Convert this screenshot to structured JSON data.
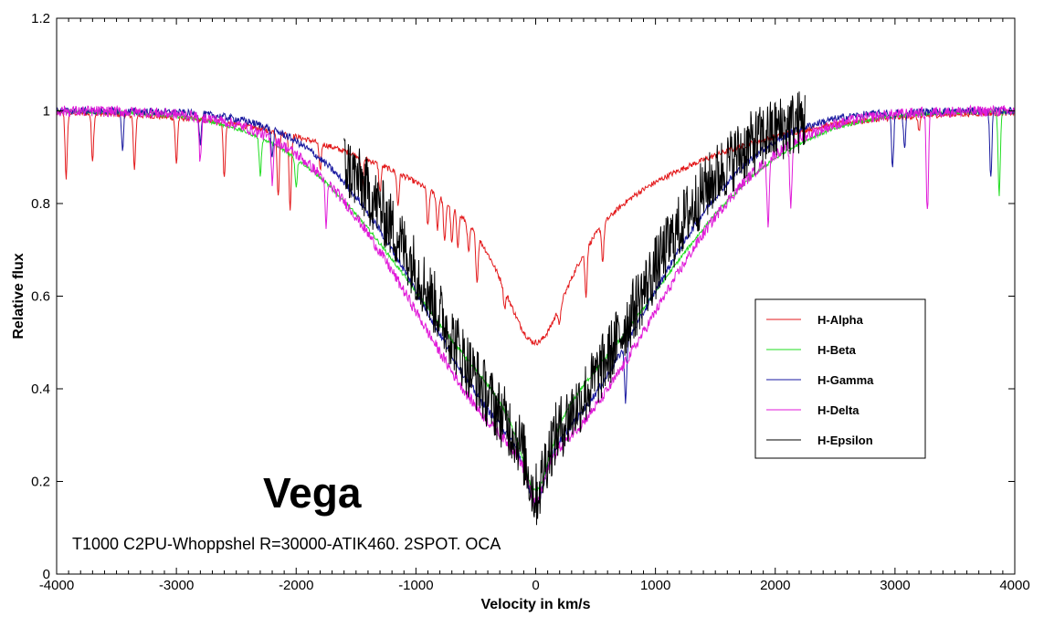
{
  "chart_data": {
    "type": "line",
    "title": "",
    "xlabel": "Velocity in km/s",
    "ylabel": "Relative flux",
    "xlim": [
      -4000,
      4000
    ],
    "ylim": [
      0,
      1.2
    ],
    "xticks": [
      -4000,
      -3000,
      -2000,
      -1000,
      0,
      1000,
      2000,
      3000,
      4000
    ],
    "yticks": [
      0,
      0.2,
      0.4,
      0.6,
      0.8,
      1,
      1.2
    ],
    "ytick_labels": [
      "0",
      "0.2",
      "0.4",
      "0.6",
      "0.8",
      "1",
      "1.2"
    ],
    "grid": false,
    "legend_position": "right",
    "annotations": [
      {
        "text": "Vega",
        "x": -2300,
        "y": 0.17
      },
      {
        "text": "T1000 C2PU-Whoppshel R=30000-ATIK460. 2SPOT. OCA",
        "x": -3900,
        "y": 0.05
      }
    ],
    "series": [
      {
        "name": "H-Alpha",
        "color": "#e31a1c",
        "x_range": [
          -4000,
          4000
        ],
        "min": 0.5,
        "halfwidth": 380,
        "wing_depth": 0.15,
        "wing_width": 1800,
        "noise": 0.006,
        "spike_x": [
          -3920,
          -3700,
          -3350,
          -3000,
          -2600,
          -2150,
          -2050,
          -1800,
          -1450,
          -1300,
          -1150,
          -900,
          -820,
          -760,
          -700,
          -650,
          -560,
          -490,
          -260,
          200,
          420,
          560,
          3200
        ],
        "spike_depth": [
          0.14,
          0.1,
          0.12,
          0.1,
          0.12,
          0.14,
          0.16,
          0.06,
          0.08,
          0.06,
          0.07,
          0.08,
          0.07,
          0.09,
          0.08,
          0.07,
          0.06,
          0.1,
          0.04,
          0.04,
          0.1,
          0.08,
          0.03
        ]
      },
      {
        "name": "H-Beta",
        "color": "#22dd22",
        "x_range": [
          -4000,
          4000
        ],
        "min": 0.18,
        "halfwidth": 170,
        "wing_depth": 0.6,
        "wing_width": 1500,
        "noise": 0.004,
        "spike_x": [
          -2300,
          -2000,
          3870
        ],
        "spike_depth": [
          0.08,
          0.06,
          0.18
        ]
      },
      {
        "name": "H-Gamma",
        "color": "#1a1aa0",
        "x_range": [
          -4000,
          4000
        ],
        "min": 0.15,
        "halfwidth": 100,
        "wing_depth": 0.7,
        "wing_width": 1300,
        "noise": 0.008,
        "spike_x": [
          -3450,
          -2800,
          -2200,
          750,
          2980,
          3080,
          3800
        ],
        "spike_depth": [
          0.08,
          0.06,
          0.06,
          0.12,
          0.12,
          0.08,
          0.14
        ]
      },
      {
        "name": "H-Delta",
        "color": "#e01ad8",
        "x_range": [
          -4000,
          4000
        ],
        "min": 0.15,
        "halfwidth": 90,
        "wing_depth": 0.72,
        "wing_width": 1400,
        "noise": 0.012,
        "spike_x": [
          -2800,
          -2200,
          -1750,
          1940,
          2130,
          3270
        ],
        "spike_depth": [
          0.1,
          0.09,
          0.1,
          0.14,
          0.14,
          0.22
        ]
      },
      {
        "name": "H-Epsilon",
        "color": "#000000",
        "x_range": [
          -1600,
          2250
        ],
        "min": 0.17,
        "halfwidth": 90,
        "wing_depth": 0.68,
        "wing_width": 1200,
        "noise": 0.045,
        "spike_x": [],
        "spike_depth": []
      }
    ]
  }
}
